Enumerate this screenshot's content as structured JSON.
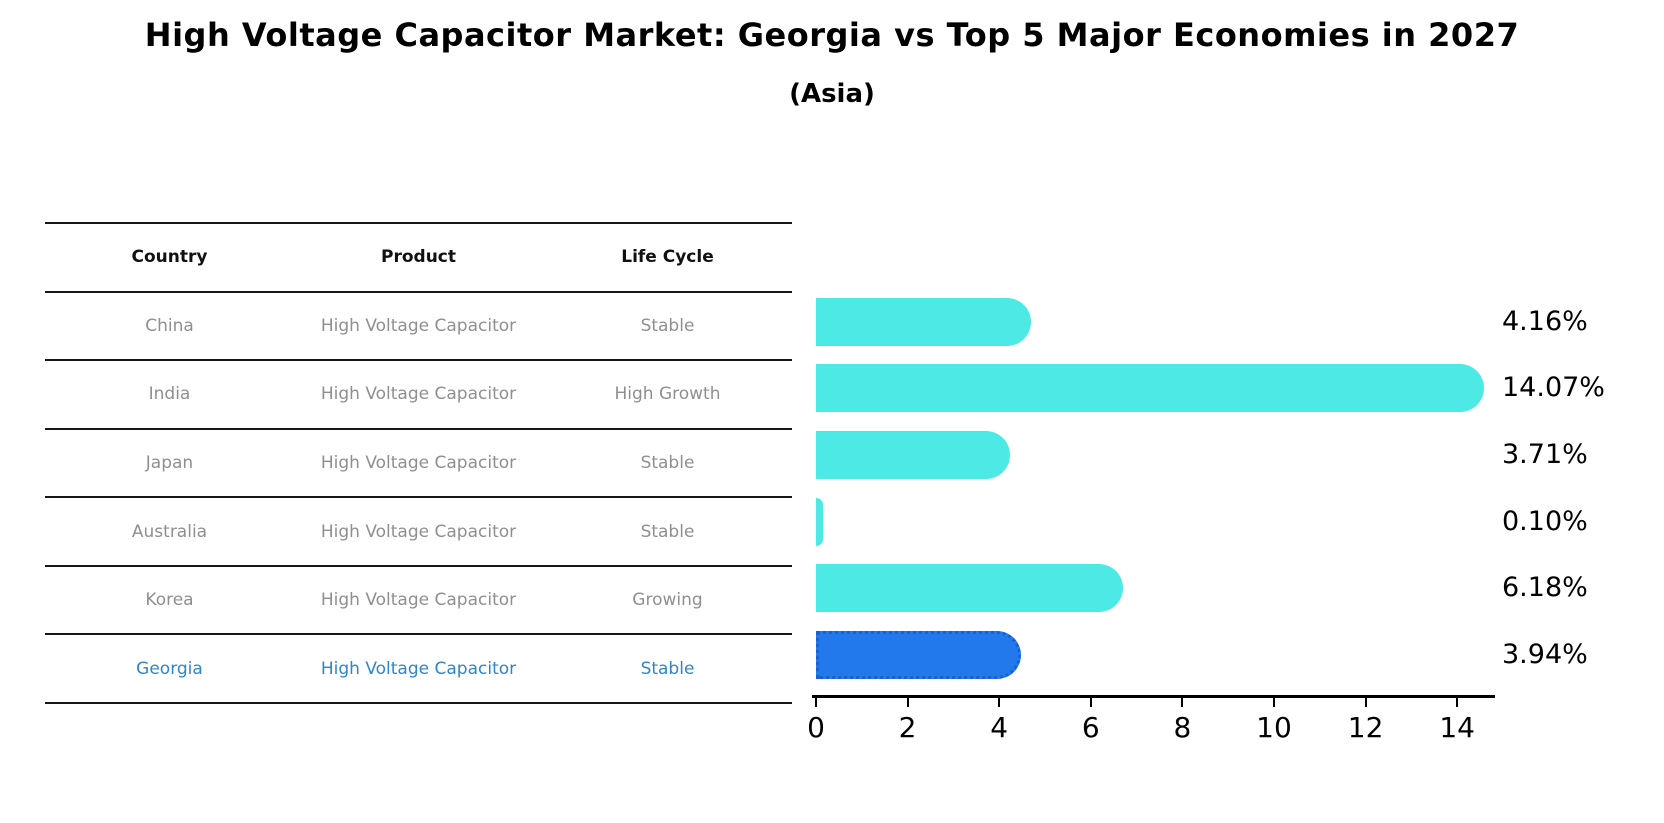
{
  "title": "High Voltage Capacitor Market: Georgia vs Top 5 Major Economies in 2027",
  "subtitle": "(Asia)",
  "table": {
    "headers": [
      "Country",
      "Product",
      "Life Cycle"
    ],
    "rows": [
      {
        "country": "China",
        "product": "High Voltage Capacitor",
        "life_cycle": "Stable",
        "highlight": false
      },
      {
        "country": "India",
        "product": "High Voltage Capacitor",
        "life_cycle": "High Growth",
        "highlight": false
      },
      {
        "country": "Japan",
        "product": "High Voltage Capacitor",
        "life_cycle": "Stable",
        "highlight": false
      },
      {
        "country": "Australia",
        "product": "High Voltage Capacitor",
        "life_cycle": "Stable",
        "highlight": false
      },
      {
        "country": "Korea",
        "product": "High Voltage Capacitor",
        "life_cycle": "Growing",
        "highlight": false
      },
      {
        "country": "Georgia",
        "product": "High Voltage Capacitor",
        "life_cycle": "Stable",
        "highlight": true
      }
    ]
  },
  "chart_data": {
    "type": "bar",
    "orientation": "horizontal",
    "title": "High Voltage Capacitor Market: Georgia vs Top 5 Major Economies in 2027",
    "subtitle": "(Asia)",
    "categories": [
      "China",
      "India",
      "Japan",
      "Australia",
      "Korea",
      "Georgia"
    ],
    "values": [
      4.16,
      14.07,
      3.71,
      0.1,
      6.18,
      3.94
    ],
    "value_labels": [
      "4.16%",
      "14.07%",
      "3.71%",
      "0.10%",
      "6.18%",
      "3.94%"
    ],
    "xlabel": "",
    "ylabel": "",
    "xlim": [
      0,
      14.8
    ],
    "x_ticks": [
      0,
      2,
      4,
      6,
      8,
      10,
      12,
      14
    ],
    "grid": false,
    "legend": false,
    "bar_color": "#4DE9E4",
    "highlight_color": "#2279EC",
    "highlight_border_color": "#1861CF",
    "highlight_index": 5
  },
  "colors": {
    "muted_text": "#8f8f8f",
    "highlight_text": "#2E86C9",
    "line": "#161616"
  }
}
